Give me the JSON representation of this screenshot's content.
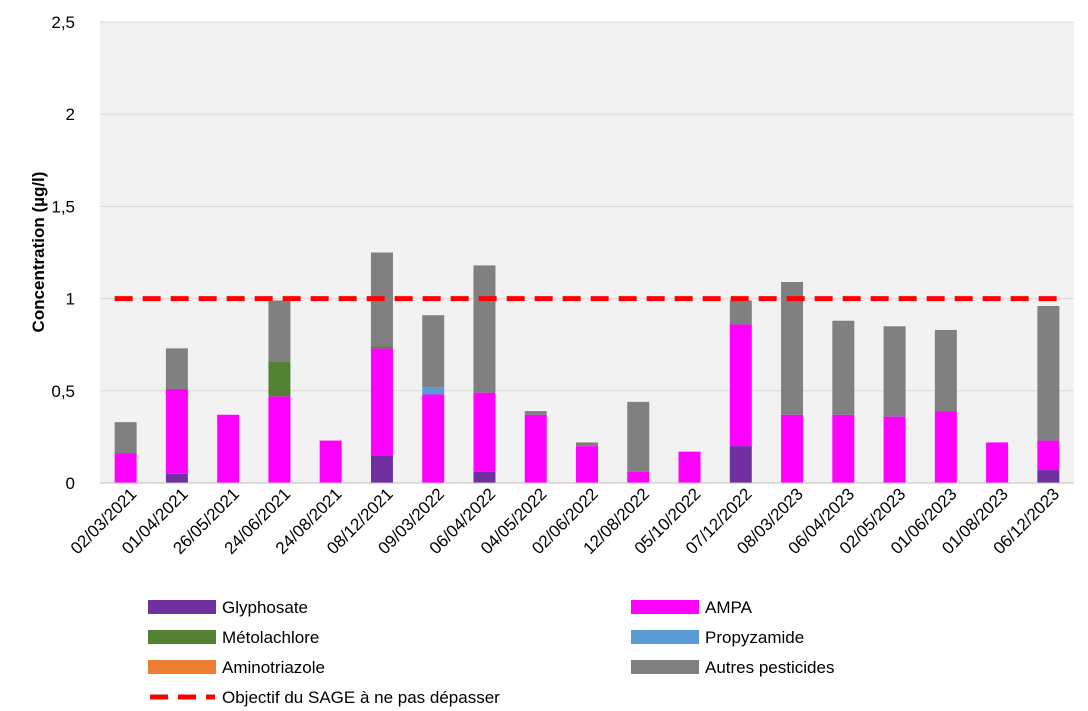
{
  "chart_data": {
    "type": "bar",
    "stacked": true,
    "title": "",
    "xlabel": "",
    "ylabel": "Concentration (µg/l)",
    "ylim": [
      0,
      2.5
    ],
    "yticks": [
      0,
      0.5,
      1,
      1.5,
      2,
      2.5
    ],
    "ytick_labels": [
      "0",
      "0,5",
      "1",
      "1,5",
      "2",
      "2,5"
    ],
    "grid": true,
    "legend_position": "bottom",
    "categories": [
      "02/03/2021",
      "01/04/2021",
      "26/05/2021",
      "24/06/2021",
      "24/08/2021",
      "08/12/2021",
      "09/03/2022",
      "06/04/2022",
      "04/05/2022",
      "02/06/2022",
      "12/08/2022",
      "05/10/2022",
      "07/12/2022",
      "08/03/2023",
      "06/04/2023",
      "02/05/2023",
      "01/06/2023",
      "01/08/2023",
      "06/12/2023"
    ],
    "series": [
      {
        "name": "Glyphosate",
        "color": "#7030a0",
        "values": [
          0,
          0.05,
          0,
          0,
          0,
          0.15,
          0,
          0.06,
          0,
          0,
          0,
          0,
          0.2,
          0,
          0,
          0,
          0,
          0,
          0.07
        ]
      },
      {
        "name": "AMPA",
        "color": "#ff00ff",
        "values": [
          0.16,
          0.46,
          0.37,
          0.47,
          0.23,
          0.58,
          0.48,
          0.43,
          0.37,
          0.2,
          0.06,
          0.17,
          0.66,
          0.37,
          0.37,
          0.36,
          0.39,
          0.22,
          0.16
        ]
      },
      {
        "name": "Métolachlore",
        "color": "#548235",
        "values": [
          0,
          0,
          0,
          0.19,
          0,
          0.01,
          0,
          0,
          0,
          0,
          0,
          0,
          0,
          0,
          0,
          0,
          0,
          0,
          0
        ]
      },
      {
        "name": "Propyzamide",
        "color": "#5b9bd5",
        "values": [
          0,
          0,
          0,
          0,
          0,
          0,
          0.04,
          0,
          0,
          0,
          0,
          0,
          0,
          0,
          0,
          0,
          0,
          0,
          0
        ]
      },
      {
        "name": "Aminotriazole",
        "color": "#ed7d31",
        "values": [
          0,
          0,
          0,
          0,
          0,
          0,
          0,
          0,
          0,
          0,
          0,
          0,
          0,
          0,
          0,
          0,
          0,
          0,
          0
        ]
      },
      {
        "name": "Autres pesticides",
        "color": "#808080",
        "values": [
          0.17,
          0.22,
          0,
          0.33,
          0,
          0.51,
          0.39,
          0.69,
          0.02,
          0.02,
          0.38,
          0,
          0.13,
          0.72,
          0.51,
          0.49,
          0.44,
          0,
          0.73
        ]
      }
    ],
    "threshold": {
      "name": "Objectif du SAGE à ne pas dépasser",
      "value": 1,
      "color": "#ff0000",
      "style": "dashed"
    }
  }
}
